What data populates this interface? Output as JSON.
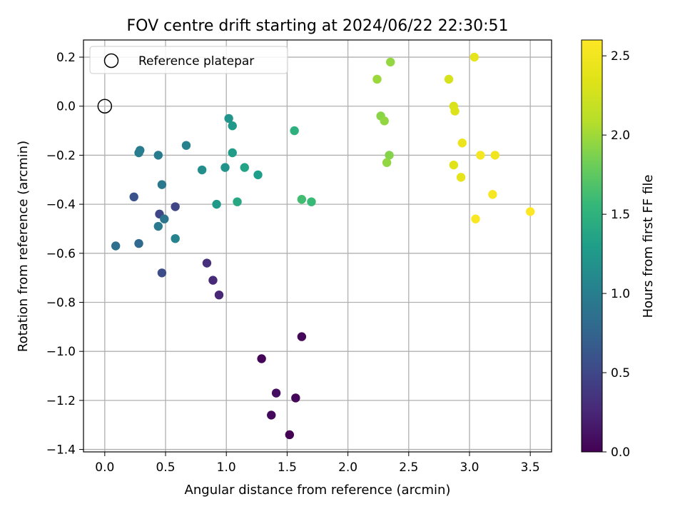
{
  "chart_data": {
    "type": "scatter",
    "title": "FOV centre drift starting at 2024/06/22 22:30:51",
    "xlabel": "Angular distance from reference (arcmin)",
    "ylabel": "Rotation from reference (arcmin)",
    "xlim": [
      -0.175,
      3.675
    ],
    "ylim": [
      -1.41,
      0.27
    ],
    "xticks": [
      {
        "value": 0.0,
        "label": "0.0"
      },
      {
        "value": 0.5,
        "label": "0.5"
      },
      {
        "value": 1.0,
        "label": "1.0"
      },
      {
        "value": 1.5,
        "label": "1.5"
      },
      {
        "value": 2.0,
        "label": "2.0"
      },
      {
        "value": 2.5,
        "label": "2.5"
      },
      {
        "value": 3.0,
        "label": "3.0"
      },
      {
        "value": 3.5,
        "label": "3.5"
      }
    ],
    "yticks": [
      {
        "value": 0.2,
        "label": "0.2"
      },
      {
        "value": 0.0,
        "label": "0.0"
      },
      {
        "value": -0.2,
        "label": "−0.2"
      },
      {
        "value": -0.4,
        "label": "−0.4"
      },
      {
        "value": -0.6,
        "label": "−0.6"
      },
      {
        "value": -0.8,
        "label": "−0.8"
      },
      {
        "value": -1.0,
        "label": "−1.0"
      },
      {
        "value": -1.2,
        "label": "−1.2"
      },
      {
        "value": -1.4,
        "label": "−1.4"
      }
    ],
    "grid": true,
    "legend": {
      "position": "upper-left",
      "entries": [
        "Reference platepar"
      ]
    },
    "reference_point": {
      "x": 0.0,
      "y": 0.0,
      "marker": "open-circle"
    },
    "colorbar": {
      "label": "Hours from first FF file",
      "range": [
        0.0,
        2.6
      ],
      "colormap": "viridis",
      "ticks": [
        {
          "value": 0.0,
          "label": "0.0"
        },
        {
          "value": 0.5,
          "label": "0.5"
        },
        {
          "value": 1.0,
          "label": "1.0"
        },
        {
          "value": 1.5,
          "label": "1.5"
        },
        {
          "value": 2.0,
          "label": "2.0"
        },
        {
          "value": 2.5,
          "label": "2.5"
        }
      ]
    },
    "points": [
      {
        "x": 1.52,
        "y": -1.34,
        "c": 0.0
      },
      {
        "x": 1.37,
        "y": -1.26,
        "c": 0.05
      },
      {
        "x": 1.57,
        "y": -1.19,
        "c": 0.03
      },
      {
        "x": 1.41,
        "y": -1.17,
        "c": 0.08
      },
      {
        "x": 1.29,
        "y": -1.03,
        "c": 0.02
      },
      {
        "x": 1.62,
        "y": -0.94,
        "c": 0.04
      },
      {
        "x": 0.94,
        "y": -0.77,
        "c": 0.25
      },
      {
        "x": 0.89,
        "y": -0.71,
        "c": 0.28
      },
      {
        "x": 0.84,
        "y": -0.64,
        "c": 0.32
      },
      {
        "x": 0.47,
        "y": -0.68,
        "c": 0.55
      },
      {
        "x": 0.58,
        "y": -0.41,
        "c": 0.48
      },
      {
        "x": 0.45,
        "y": -0.44,
        "c": 0.5
      },
      {
        "x": 0.24,
        "y": -0.37,
        "c": 0.6
      },
      {
        "x": 0.28,
        "y": -0.56,
        "c": 0.8
      },
      {
        "x": 0.09,
        "y": -0.57,
        "c": 0.85
      },
      {
        "x": 0.49,
        "y": -0.46,
        "c": 0.9
      },
      {
        "x": 0.44,
        "y": -0.49,
        "c": 0.95
      },
      {
        "x": 0.58,
        "y": -0.54,
        "c": 1.05
      },
      {
        "x": 0.47,
        "y": -0.32,
        "c": 0.93
      },
      {
        "x": 0.44,
        "y": -0.2,
        "c": 0.97
      },
      {
        "x": 0.29,
        "y": -0.18,
        "c": 0.98
      },
      {
        "x": 0.28,
        "y": -0.19,
        "c": 0.99
      },
      {
        "x": 0.67,
        "y": -0.16,
        "c": 1.05
      },
      {
        "x": 0.8,
        "y": -0.26,
        "c": 1.15
      },
      {
        "x": 0.92,
        "y": -0.4,
        "c": 1.25
      },
      {
        "x": 0.99,
        "y": -0.25,
        "c": 1.2
      },
      {
        "x": 1.02,
        "y": -0.05,
        "c": 1.22
      },
      {
        "x": 1.05,
        "y": -0.08,
        "c": 1.25
      },
      {
        "x": 1.05,
        "y": -0.19,
        "c": 1.28
      },
      {
        "x": 1.09,
        "y": -0.39,
        "c": 1.4
      },
      {
        "x": 1.15,
        "y": -0.25,
        "c": 1.35
      },
      {
        "x": 1.26,
        "y": -0.28,
        "c": 1.3
      },
      {
        "x": 1.56,
        "y": -0.1,
        "c": 1.48
      },
      {
        "x": 1.62,
        "y": -0.38,
        "c": 1.62
      },
      {
        "x": 1.7,
        "y": -0.39,
        "c": 1.58
      },
      {
        "x": 2.24,
        "y": 0.11,
        "c": 1.98
      },
      {
        "x": 2.35,
        "y": 0.18,
        "c": 1.96
      },
      {
        "x": 2.27,
        "y": -0.04,
        "c": 1.92
      },
      {
        "x": 2.3,
        "y": -0.06,
        "c": 1.95
      },
      {
        "x": 2.34,
        "y": -0.2,
        "c": 1.9
      },
      {
        "x": 2.32,
        "y": -0.23,
        "c": 1.95
      },
      {
        "x": 2.83,
        "y": 0.11,
        "c": 2.28
      },
      {
        "x": 3.04,
        "y": 0.2,
        "c": 2.4
      },
      {
        "x": 2.87,
        "y": 0.0,
        "c": 2.3
      },
      {
        "x": 2.88,
        "y": -0.02,
        "c": 2.32
      },
      {
        "x": 2.94,
        "y": -0.15,
        "c": 2.45
      },
      {
        "x": 2.87,
        "y": -0.24,
        "c": 2.35
      },
      {
        "x": 2.93,
        "y": -0.29,
        "c": 2.4
      },
      {
        "x": 3.09,
        "y": -0.2,
        "c": 2.52
      },
      {
        "x": 3.21,
        "y": -0.2,
        "c": 2.5
      },
      {
        "x": 3.19,
        "y": -0.36,
        "c": 2.55
      },
      {
        "x": 3.05,
        "y": -0.46,
        "c": 2.57
      },
      {
        "x": 3.5,
        "y": -0.43,
        "c": 2.6
      }
    ]
  }
}
